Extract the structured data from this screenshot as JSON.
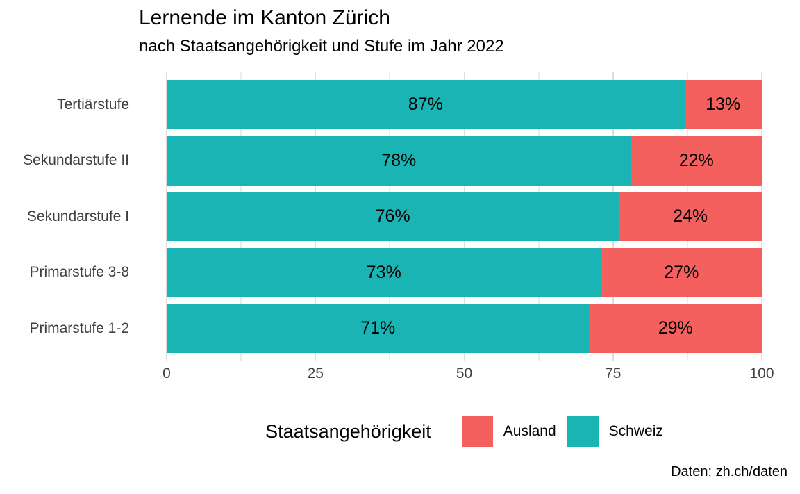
{
  "chart": {
    "title": "Lernende im Kanton Zürich",
    "subtitle": "nach Staatsangehörigkeit und Stufe im Jahr 2022",
    "caption": "Daten: zh.ch/daten"
  },
  "chart_data": {
    "type": "bar",
    "orientation": "horizontal",
    "stacked": true,
    "title": "Lernende im Kanton Zürich",
    "subtitle": "nach Staatsangehörigkeit und Stufe im Jahr 2022",
    "caption": "Daten: zh.ch/daten",
    "categories": [
      "Tertiärstufe",
      "Sekundarstufe II",
      "Sekundarstufe I",
      "Primarstufe 3-8",
      "Primarstufe 1-2"
    ],
    "series": [
      {
        "name": "Schweiz",
        "color": "#1AB4B5",
        "values": [
          87,
          78,
          76,
          73,
          71
        ]
      },
      {
        "name": "Ausland",
        "color": "#F3605E",
        "values": [
          13,
          22,
          24,
          27,
          29
        ]
      }
    ],
    "bar_label_suffix": "%",
    "xlim": [
      0,
      100
    ],
    "x_major_ticks": [
      0,
      25,
      50,
      75,
      100
    ],
    "x_minor_ticks": [
      12.5,
      37.5,
      62.5,
      87.5
    ],
    "grid": "vertical-only",
    "legend": {
      "title": "Staatsangehörigkeit",
      "position": "bottom",
      "items": [
        {
          "label": "Ausland",
          "color": "#F3605E"
        },
        {
          "label": "Schweiz",
          "color": "#1AB4B5"
        }
      ]
    }
  }
}
